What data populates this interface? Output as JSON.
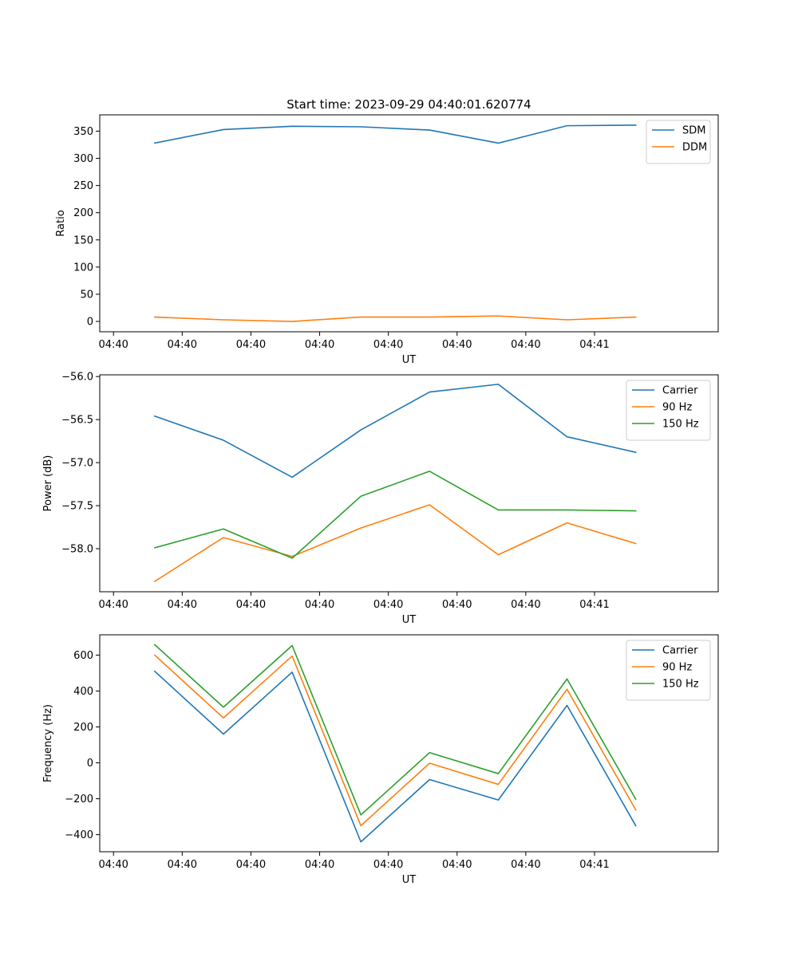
{
  "figure": {
    "title": "Start time: 2023-09-29 04:40:01.620774"
  },
  "chart_data": [
    {
      "type": "line",
      "title": "Start time: 2023-09-29 04:40:01.620774",
      "xlabel": "UT",
      "ylabel": "Ratio",
      "x_tick_labels": [
        "04:40",
        "04:40",
        "04:40",
        "04:40",
        "04:40",
        "04:40",
        "04:40",
        "04:41"
      ],
      "x": [
        1,
        2,
        3,
        4,
        5,
        6,
        7,
        8
      ],
      "xlim": [
        0.2,
        9.2
      ],
      "ylim": [
        -19,
        380
      ],
      "y_ticks": [
        0,
        50,
        100,
        150,
        200,
        250,
        300,
        350
      ],
      "y_tick_labels": [
        "0",
        "50",
        "100",
        "150",
        "200",
        "250",
        "300",
        "350"
      ],
      "legend_position": "top-right",
      "series": [
        {
          "name": "SDM",
          "color": "#1f77b4",
          "values": [
            328,
            353,
            359,
            358,
            352,
            328,
            360,
            361
          ]
        },
        {
          "name": "DDM",
          "color": "#ff7f0e",
          "values": [
            8,
            3,
            0,
            8,
            8,
            10,
            3,
            8
          ]
        }
      ]
    },
    {
      "type": "line",
      "title": "",
      "xlabel": "UT",
      "ylabel": "Power (dB)",
      "x_tick_labels": [
        "04:40",
        "04:40",
        "04:40",
        "04:40",
        "04:40",
        "04:40",
        "04:40",
        "04:41"
      ],
      "x": [
        1,
        2,
        3,
        4,
        5,
        6,
        7,
        8
      ],
      "xlim": [
        0.2,
        9.2
      ],
      "ylim": [
        -58.5,
        -55.98
      ],
      "y_ticks": [
        -56.0,
        -56.5,
        -57.0,
        -57.5,
        -58.0
      ],
      "y_tick_labels": [
        "−56.0",
        "−56.5",
        "−57.0",
        "−57.5",
        "−58.0"
      ],
      "legend_position": "top-right",
      "series": [
        {
          "name": "Carrier",
          "color": "#1f77b4",
          "values": [
            -56.46,
            -56.74,
            -57.17,
            -56.62,
            -56.18,
            -56.09,
            -56.7,
            -56.88
          ]
        },
        {
          "name": "90 Hz",
          "color": "#ff7f0e",
          "values": [
            -58.38,
            -57.87,
            -58.09,
            -57.76,
            -57.49,
            -58.07,
            -57.7,
            -57.94
          ]
        },
        {
          "name": "150 Hz",
          "color": "#2ca02c",
          "values": [
            -57.99,
            -57.77,
            -58.11,
            -57.39,
            -57.1,
            -57.55,
            -57.55,
            -57.56
          ]
        }
      ]
    },
    {
      "type": "line",
      "title": "",
      "xlabel": "UT",
      "ylabel": "Frequency (Hz)",
      "x_tick_labels": [
        "04:40",
        "04:40",
        "04:40",
        "04:40",
        "04:40",
        "04:40",
        "04:40",
        "04:41"
      ],
      "x": [
        1,
        2,
        3,
        4,
        5,
        6,
        7,
        8
      ],
      "xlim": [
        0.2,
        9.2
      ],
      "ylim": [
        -495,
        713
      ],
      "y_ticks": [
        600,
        400,
        200,
        0,
        -200,
        -400
      ],
      "y_tick_labels": [
        "600",
        "400",
        "200",
        "0",
        "−200",
        "−400"
      ],
      "legend_position": "top-right",
      "series": [
        {
          "name": "Carrier",
          "color": "#1f77b4",
          "values": [
            510,
            160,
            505,
            -440,
            -93,
            -207,
            320,
            -350
          ]
        },
        {
          "name": "90 Hz",
          "color": "#ff7f0e",
          "values": [
            600,
            250,
            595,
            -350,
            -2,
            -120,
            410,
            -262
          ]
        },
        {
          "name": "150 Hz",
          "color": "#2ca02c",
          "values": [
            658,
            310,
            653,
            -290,
            57,
            -60,
            467,
            -202
          ]
        }
      ]
    }
  ]
}
